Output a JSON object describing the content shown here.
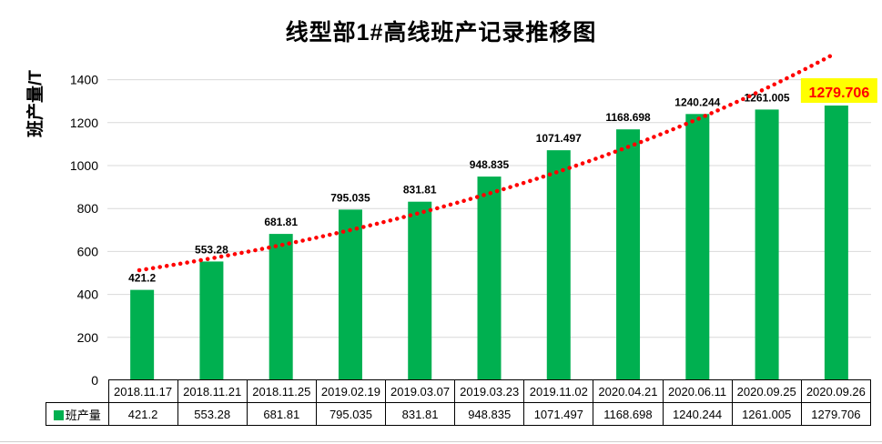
{
  "chart_data": {
    "type": "bar",
    "title": "线型部1#高线班产记录推移图",
    "ylabel": "班产量/T",
    "xlabel": "",
    "ylim": [
      0,
      1500
    ],
    "ytick_interval": 200,
    "ytick_labels": [
      "0",
      "200",
      "400",
      "600",
      "800",
      "1000",
      "1200",
      "1400"
    ],
    "grid": true,
    "legend_position": "bottom-table-left",
    "series_name": "班产量",
    "categories": [
      "2018.11.17",
      "2018.11.21",
      "2018.11.25",
      "2019.02.19",
      "2019.03.07",
      "2019.03.23",
      "2019.11.02",
      "2020.04.21",
      "2020.06.11",
      "2020.09.25",
      "2020.09.26"
    ],
    "values": [
      421.2,
      553.28,
      681.81,
      795.035,
      831.81,
      948.835,
      1071.497,
      1168.698,
      1240.244,
      1261.005,
      1279.706
    ],
    "bar_color": "#00B050",
    "gridline_color": "#D9D9D9",
    "label_color": "#000000",
    "trendline": {
      "style": "dotted",
      "color": "#FF0000"
    },
    "highlight_last_label": {
      "text": "1279.706",
      "background": "#FFFF00",
      "color": "#FF0000"
    }
  }
}
